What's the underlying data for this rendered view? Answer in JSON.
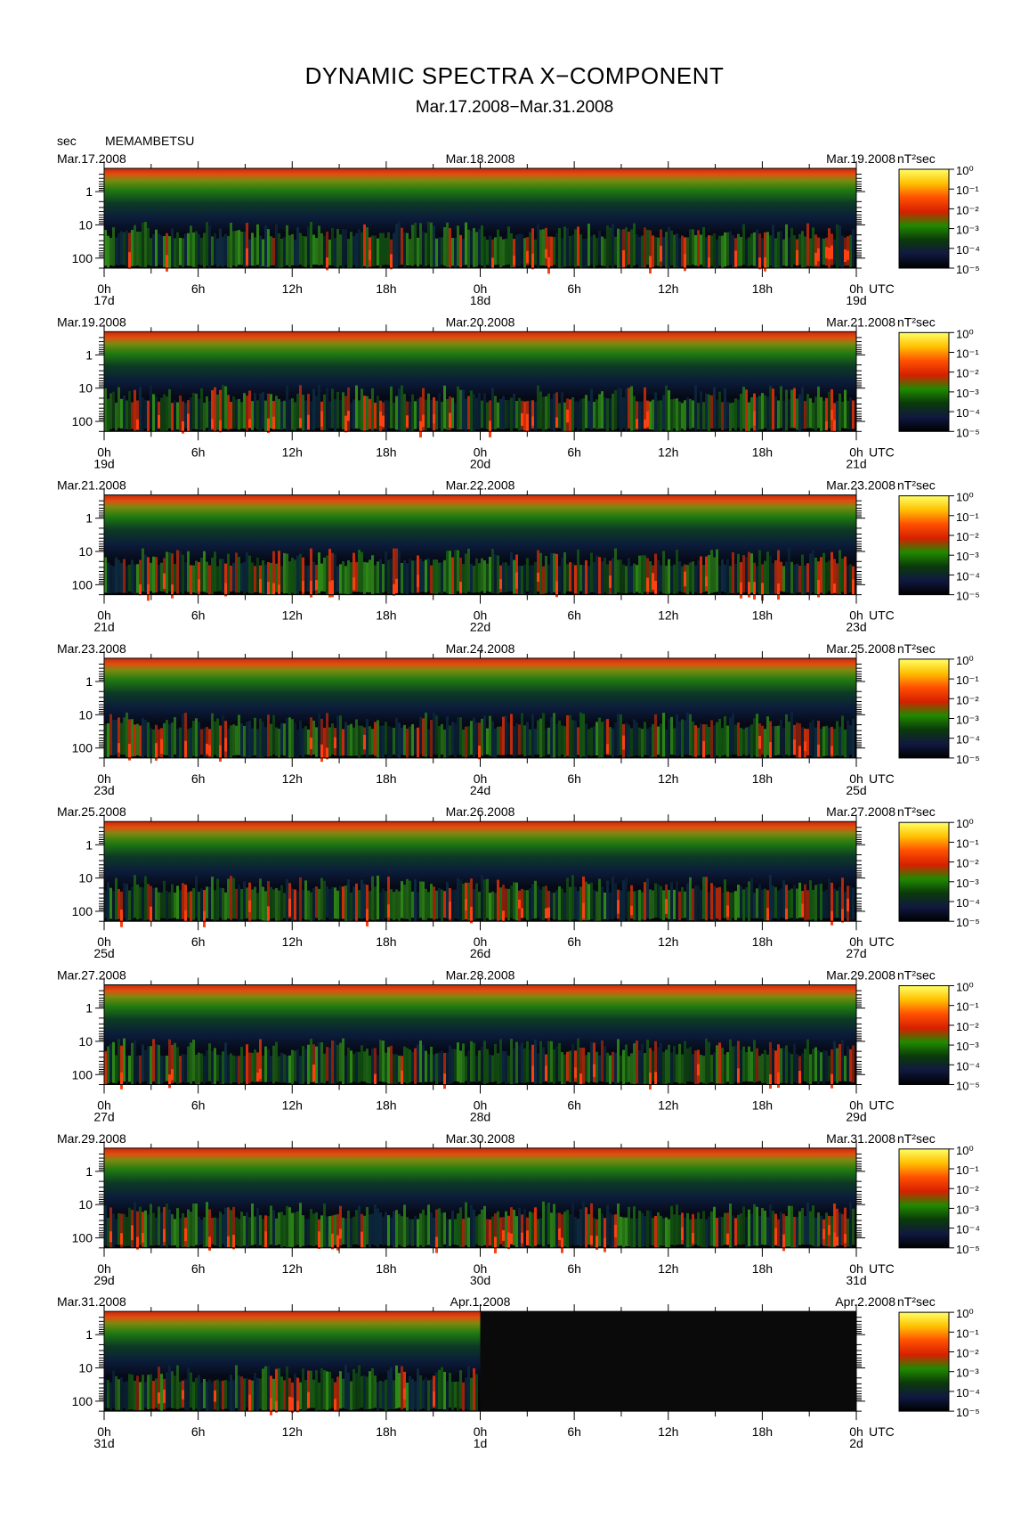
{
  "title": "DYNAMIC SPECTRA X−COMPONENT",
  "subtitle": "Mar.17.2008−Mar.31.2008",
  "y_unit": "sec",
  "station": "MEMAMBETSU",
  "colorbar_unit": "nT²sec",
  "chart_data": {
    "type": "heatmap",
    "y_axis": {
      "label": "sec",
      "ticks": [
        "1",
        "10",
        "100"
      ],
      "log": true
    },
    "x_axis": {
      "ticks": [
        "0h",
        "6h",
        "12h",
        "18h",
        "0h",
        "6h",
        "12h",
        "18h",
        "0h"
      ],
      "unit": "UTC"
    },
    "colorbar": {
      "label": "nT²sec",
      "ticks": [
        "10⁰",
        "10⁻¹",
        "10⁻²",
        "10⁻³",
        "10⁻⁴",
        "10⁻⁵"
      ],
      "log": true,
      "colors": [
        "#ffff66",
        "#ffc000",
        "#ff5000",
        "#d62000",
        "#208a00",
        "#0a3a0a",
        "#101840",
        "#000000"
      ]
    },
    "panels": [
      {
        "start": "Mar.17.2008",
        "mid": "Mar.18.2008",
        "end": "Mar.19.2008",
        "days": [
          "17d",
          "18d",
          "19d"
        ],
        "data_end_fraction": 1.0
      },
      {
        "start": "Mar.19.2008",
        "mid": "Mar.20.2008",
        "end": "Mar.21.2008",
        "days": [
          "19d",
          "20d",
          "21d"
        ],
        "data_end_fraction": 1.0
      },
      {
        "start": "Mar.21.2008",
        "mid": "Mar.22.2008",
        "end": "Mar.23.2008",
        "days": [
          "21d",
          "22d",
          "23d"
        ],
        "data_end_fraction": 1.0
      },
      {
        "start": "Mar.23.2008",
        "mid": "Mar.24.2008",
        "end": "Mar.25.2008",
        "days": [
          "23d",
          "24d",
          "25d"
        ],
        "data_end_fraction": 1.0
      },
      {
        "start": "Mar.25.2008",
        "mid": "Mar.26.2008",
        "end": "Mar.27.2008",
        "days": [
          "25d",
          "26d",
          "27d"
        ],
        "data_end_fraction": 1.0
      },
      {
        "start": "Mar.27.2008",
        "mid": "Mar.28.2008",
        "end": "Mar.29.2008",
        "days": [
          "27d",
          "28d",
          "29d"
        ],
        "data_end_fraction": 1.0
      },
      {
        "start": "Mar.29.2008",
        "mid": "Mar.30.2008",
        "end": "Mar.31.2008",
        "days": [
          "29d",
          "30d",
          "31d"
        ],
        "data_end_fraction": 1.0
      },
      {
        "start": "Mar.31.2008",
        "mid": "Apr.1.2008",
        "end": "Apr.2.2008",
        "days": [
          "31d",
          "1d",
          "2d"
        ],
        "data_end_fraction": 0.5
      }
    ]
  }
}
